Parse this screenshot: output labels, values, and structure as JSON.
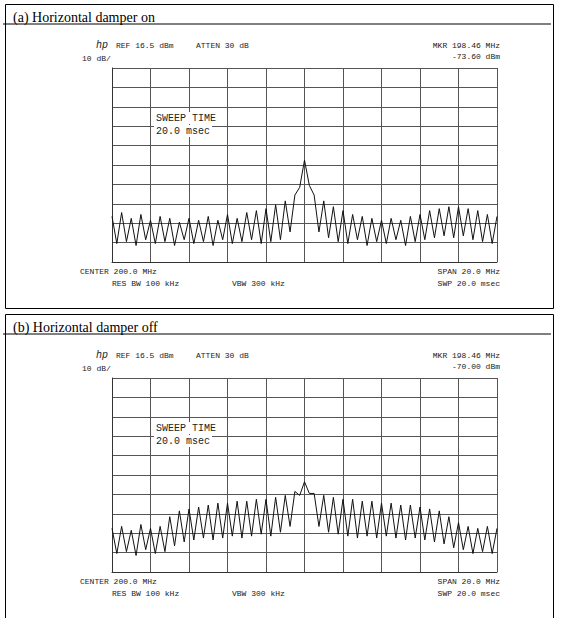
{
  "chart_data": [
    {
      "type": "line",
      "title": "(a) Horizontal damper on",
      "annotations": [
        "hp",
        "REF 16.5 dBm",
        "ATTEN 30 dB",
        "MKR 198.46 MHz",
        "-73.60 dBm",
        "10 dB/",
        "SWEEP TIME",
        "20.0 msec",
        "CENTER 200.0 MHz",
        "RES BW 100 kHz",
        "VBW 300 kHz",
        "SPAN 20.0 MHz",
        "SWP 20.0 msec"
      ],
      "x": [
        190,
        190.25,
        190.5,
        190.75,
        191,
        191.25,
        191.5,
        191.75,
        192,
        192.25,
        192.5,
        192.75,
        193,
        193.25,
        193.5,
        193.75,
        194,
        194.25,
        194.5,
        194.75,
        195,
        195.25,
        195.5,
        195.75,
        196,
        196.25,
        196.5,
        196.75,
        197,
        197.25,
        197.5,
        197.75,
        198,
        198.25,
        198.5,
        198.75,
        199,
        199.25,
        199.5,
        199.75,
        200,
        200.25,
        200.5,
        200.75,
        201,
        201.25,
        201.5,
        201.75,
        202,
        202.25,
        202.5,
        202.75,
        203,
        203.25,
        203.5,
        203.75,
        204,
        204.25,
        204.5,
        204.75,
        205,
        205.25,
        205.5,
        205.75,
        206,
        206.25,
        206.5,
        206.75,
        207,
        207.25,
        207.5,
        207.75,
        208,
        208.25,
        208.5,
        208.75,
        209,
        209.25,
        209.5,
        209.75,
        210
      ],
      "values": [
        -60,
        -74,
        -58,
        -73,
        -61,
        -75,
        -59,
        -72,
        -62,
        -74,
        -60,
        -73,
        -61,
        -75,
        -63,
        -72,
        -61,
        -74,
        -62,
        -73,
        -60,
        -75,
        -62,
        -72,
        -59,
        -74,
        -61,
        -73,
        -58,
        -72,
        -57,
        -74,
        -56,
        -73,
        -54,
        -72,
        -52,
        -68,
        -49,
        -45,
        -31,
        -44,
        -49,
        -68,
        -52,
        -71,
        -55,
        -73,
        -57,
        -74,
        -59,
        -72,
        -60,
        -75,
        -61,
        -73,
        -62,
        -74,
        -61,
        -72,
        -62,
        -75,
        -60,
        -73,
        -59,
        -72,
        -57,
        -71,
        -56,
        -70,
        -55,
        -71,
        -55,
        -70,
        -56,
        -72,
        -57,
        -73,
        -59,
        -74,
        -60
      ],
      "color": "#111111",
      "xlim": [
        190,
        210
      ],
      "xticks": [
        190,
        192,
        194,
        196,
        198,
        200,
        202,
        204,
        206,
        208,
        210
      ],
      "ylim": [
        -83.5,
        16.5
      ],
      "yticks": [
        -83.5,
        -73.5,
        -63.5,
        -53.5,
        -43.5,
        -33.5,
        -23.5,
        -13.5,
        -3.5,
        6.5,
        16.5
      ],
      "grid": true,
      "tick_labels": false
    },
    {
      "type": "line",
      "title": "(b) Horizontal damper off",
      "annotations": [
        "hp",
        "REF 16.5 dBm",
        "ATTEN 30 dB",
        "MKR 198.46 MHz",
        "-70.00 dBm",
        "10 dB/",
        "SWEEP TIME",
        "20.0 msec",
        "CENTER 200.0 MHz",
        "RES BW 100 kHz",
        "VBW 300 kHz",
        "SPAN 20.0 MHz",
        "SWP 20.0 msec"
      ],
      "x": [
        190,
        190.25,
        190.5,
        190.75,
        191,
        191.25,
        191.5,
        191.75,
        192,
        192.25,
        192.5,
        192.75,
        193,
        193.25,
        193.5,
        193.75,
        194,
        194.25,
        194.5,
        194.75,
        195,
        195.25,
        195.5,
        195.75,
        196,
        196.25,
        196.5,
        196.75,
        197,
        197.25,
        197.5,
        197.75,
        198,
        198.25,
        198.5,
        198.75,
        199,
        199.25,
        199.5,
        199.75,
        200,
        200.25,
        200.5,
        200.75,
        201,
        201.25,
        201.5,
        201.75,
        202,
        202.25,
        202.5,
        202.75,
        203,
        203.25,
        203.5,
        203.75,
        204,
        204.25,
        204.5,
        204.75,
        205,
        205.25,
        205.5,
        205.75,
        206,
        206.25,
        206.5,
        206.75,
        207,
        207.25,
        207.5,
        207.75,
        208,
        208.25,
        208.5,
        208.75,
        209,
        209.25,
        209.5,
        209.75,
        210
      ],
      "values": [
        -61,
        -74,
        -60,
        -73,
        -62,
        -75,
        -59,
        -72,
        -61,
        -74,
        -60,
        -73,
        -55,
        -70,
        -52,
        -68,
        -51,
        -67,
        -50,
        -66,
        -49,
        -67,
        -48,
        -66,
        -48,
        -65,
        -47,
        -66,
        -47,
        -65,
        -46,
        -64,
        -46,
        -65,
        -45,
        -63,
        -44,
        -60,
        -42,
        -44,
        -37,
        -43,
        -43,
        -60,
        -44,
        -63,
        -45,
        -64,
        -46,
        -65,
        -46,
        -66,
        -47,
        -65,
        -47,
        -66,
        -48,
        -65,
        -48,
        -66,
        -49,
        -67,
        -49,
        -66,
        -50,
        -67,
        -51,
        -68,
        -52,
        -69,
        -55,
        -71,
        -58,
        -72,
        -60,
        -74,
        -61,
        -73,
        -60,
        -74,
        -61
      ],
      "color": "#111111",
      "xlim": [
        190,
        210
      ],
      "xticks": [
        190,
        192,
        194,
        196,
        198,
        200,
        202,
        204,
        206,
        208,
        210
      ],
      "ylim": [
        -83.5,
        16.5
      ],
      "yticks": [
        -83.5,
        -73.5,
        -63.5,
        -53.5,
        -43.5,
        -33.5,
        -23.5,
        -13.5,
        -3.5,
        6.5,
        16.5
      ],
      "grid": true,
      "tick_labels": false
    }
  ]
}
